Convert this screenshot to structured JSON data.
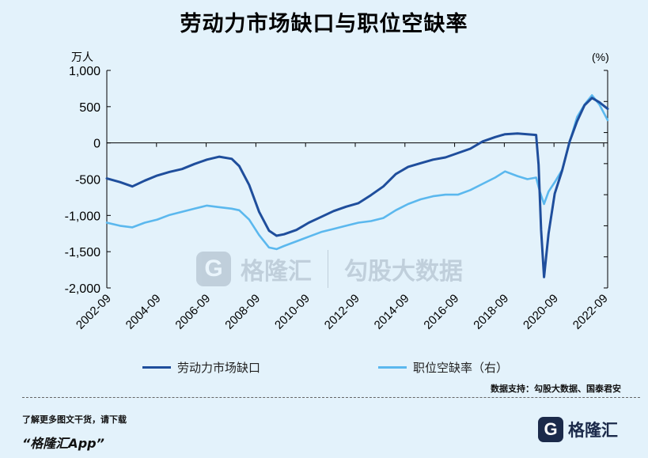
{
  "title": "劳动力市场缺口与职位空缺率",
  "watermark": {
    "brand_letter": "G",
    "brand_name": "格隆汇",
    "partner_name": "勾股大数据"
  },
  "source_text": "数据支持：勾股大数据、国泰君安",
  "footer": {
    "note": "了解更多图文干货，请下载",
    "app": "“格隆汇App”",
    "brand_letter": "G",
    "brand_name": "格隆汇"
  },
  "chart_data": {
    "type": "line",
    "left_axis_label": "万人",
    "right_axis_label": "(%)",
    "ylim_left": [
      -2000,
      1000
    ],
    "yticks_left": [
      -2000,
      -1500,
      -1000,
      -500,
      0,
      500,
      1000
    ],
    "ytick_labels_left": [
      "-2,000",
      "-1,500",
      "-1,000",
      "-500",
      "0",
      "500",
      "1,000"
    ],
    "ylim_right": [
      1,
      8
    ],
    "xlim": [
      2002.67,
      2022.83
    ],
    "xticks": [
      2002.67,
      2004.67,
      2006.67,
      2008.67,
      2010.67,
      2012.67,
      2014.67,
      2016.67,
      2018.67,
      2020.67,
      2022.67
    ],
    "xtick_labels": [
      "2002-09",
      "2004-09",
      "2006-09",
      "2008-09",
      "2010-09",
      "2012-09",
      "2014-09",
      "2016-09",
      "2018-09",
      "2020-09",
      "2022-09"
    ],
    "series": [
      {
        "name": "劳动力市场缺口",
        "axis": "left",
        "color": "#1f4e9c",
        "points": [
          [
            2002.67,
            -490
          ],
          [
            2003.2,
            -540
          ],
          [
            2003.7,
            -600
          ],
          [
            2004.2,
            -520
          ],
          [
            2004.7,
            -450
          ],
          [
            2005.2,
            -400
          ],
          [
            2005.7,
            -360
          ],
          [
            2006.2,
            -290
          ],
          [
            2006.7,
            -230
          ],
          [
            2007.2,
            -190
          ],
          [
            2007.7,
            -220
          ],
          [
            2008.0,
            -320
          ],
          [
            2008.4,
            -580
          ],
          [
            2008.8,
            -950
          ],
          [
            2009.2,
            -1210
          ],
          [
            2009.5,
            -1280
          ],
          [
            2009.8,
            -1260
          ],
          [
            2010.3,
            -1200
          ],
          [
            2010.8,
            -1100
          ],
          [
            2011.3,
            -1020
          ],
          [
            2011.8,
            -940
          ],
          [
            2012.3,
            -880
          ],
          [
            2012.8,
            -830
          ],
          [
            2013.3,
            -720
          ],
          [
            2013.8,
            -600
          ],
          [
            2014.3,
            -430
          ],
          [
            2014.8,
            -330
          ],
          [
            2015.3,
            -280
          ],
          [
            2015.8,
            -230
          ],
          [
            2016.3,
            -200
          ],
          [
            2016.8,
            -140
          ],
          [
            2017.3,
            -80
          ],
          [
            2017.8,
            20
          ],
          [
            2018.3,
            80
          ],
          [
            2018.7,
            120
          ],
          [
            2019.2,
            130
          ],
          [
            2019.6,
            120
          ],
          [
            2019.95,
            110
          ],
          [
            2020.05,
            -300
          ],
          [
            2020.15,
            -1200
          ],
          [
            2020.27,
            -1850
          ],
          [
            2020.45,
            -1250
          ],
          [
            2020.7,
            -700
          ],
          [
            2021.0,
            -380
          ],
          [
            2021.3,
            20
          ],
          [
            2021.6,
            300
          ],
          [
            2021.9,
            520
          ],
          [
            2022.2,
            620
          ],
          [
            2022.5,
            560
          ],
          [
            2022.83,
            470
          ]
        ]
      },
      {
        "name": "职位空缺率（右）",
        "axis": "right",
        "color": "#5bb8ee",
        "points": [
          [
            2002.67,
            3.1
          ],
          [
            2003.2,
            3.0
          ],
          [
            2003.7,
            2.95
          ],
          [
            2004.2,
            3.1
          ],
          [
            2004.7,
            3.2
          ],
          [
            2005.2,
            3.35
          ],
          [
            2005.7,
            3.45
          ],
          [
            2006.2,
            3.55
          ],
          [
            2006.7,
            3.65
          ],
          [
            2007.2,
            3.6
          ],
          [
            2007.7,
            3.55
          ],
          [
            2008.0,
            3.5
          ],
          [
            2008.4,
            3.2
          ],
          [
            2008.8,
            2.7
          ],
          [
            2009.2,
            2.3
          ],
          [
            2009.5,
            2.25
          ],
          [
            2009.8,
            2.35
          ],
          [
            2010.3,
            2.5
          ],
          [
            2010.8,
            2.65
          ],
          [
            2011.3,
            2.8
          ],
          [
            2011.8,
            2.9
          ],
          [
            2012.3,
            3.0
          ],
          [
            2012.8,
            3.1
          ],
          [
            2013.3,
            3.15
          ],
          [
            2013.8,
            3.25
          ],
          [
            2014.3,
            3.5
          ],
          [
            2014.8,
            3.7
          ],
          [
            2015.3,
            3.85
          ],
          [
            2015.8,
            3.95
          ],
          [
            2016.3,
            4.0
          ],
          [
            2016.8,
            4.0
          ],
          [
            2017.3,
            4.15
          ],
          [
            2017.8,
            4.35
          ],
          [
            2018.3,
            4.55
          ],
          [
            2018.7,
            4.75
          ],
          [
            2019.2,
            4.6
          ],
          [
            2019.6,
            4.5
          ],
          [
            2019.95,
            4.55
          ],
          [
            2020.1,
            4.1
          ],
          [
            2020.27,
            3.7
          ],
          [
            2020.45,
            4.1
          ],
          [
            2020.7,
            4.4
          ],
          [
            2021.0,
            4.8
          ],
          [
            2021.3,
            5.7
          ],
          [
            2021.6,
            6.5
          ],
          [
            2021.9,
            6.9
          ],
          [
            2022.2,
            7.2
          ],
          [
            2022.5,
            6.9
          ],
          [
            2022.83,
            6.4
          ]
        ]
      }
    ]
  }
}
